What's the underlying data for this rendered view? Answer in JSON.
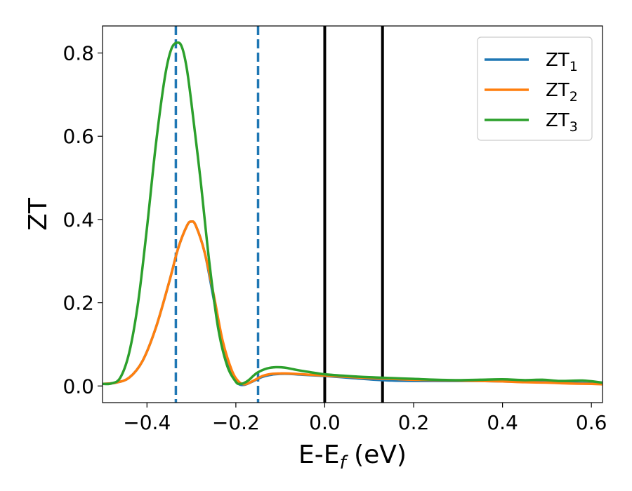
{
  "chart_data": {
    "type": "line",
    "title": "",
    "xlabel_main": "E-E",
    "xlabel_sub": "f",
    "xlabel_unit": " (eV)",
    "ylabel": "ZT",
    "xlim": [
      -0.5,
      0.625
    ],
    "ylim": [
      -0.04,
      0.865
    ],
    "xticks": [
      -0.4,
      -0.2,
      0.0,
      0.2,
      0.4,
      0.6
    ],
    "xtick_labels": [
      "−0.4",
      "−0.2",
      "0.0",
      "0.2",
      "0.4",
      "0.6"
    ],
    "yticks": [
      0.0,
      0.2,
      0.4,
      0.6,
      0.8
    ],
    "ytick_labels": [
      "0.0",
      "0.2",
      "0.4",
      "0.6",
      "0.8"
    ],
    "grid": false,
    "legend_position": "top-right",
    "vlines": [
      {
        "x": -0.335,
        "style": "dashed",
        "color": "#1f77b4"
      },
      {
        "x": -0.15,
        "style": "dashed",
        "color": "#1f77b4"
      },
      {
        "x": 0.0,
        "style": "solid",
        "color": "#000000"
      },
      {
        "x": 0.13,
        "style": "solid",
        "color": "#000000"
      }
    ],
    "series": [
      {
        "name": "ZT",
        "subscript": "1",
        "color": "#1f77b4",
        "x": [
          -0.5,
          -0.47,
          -0.44,
          -0.41,
          -0.38,
          -0.35,
          -0.33,
          -0.31,
          -0.3,
          -0.29,
          -0.27,
          -0.25,
          -0.23,
          -0.21,
          -0.195,
          -0.18,
          -0.16,
          -0.14,
          -0.12,
          -0.1,
          -0.08,
          -0.05,
          0.0,
          0.05,
          0.1,
          0.15,
          0.2,
          0.25,
          0.3,
          0.35,
          0.4,
          0.45,
          0.5,
          0.55,
          0.6,
          0.625
        ],
        "y": [
          0.005,
          0.008,
          0.02,
          0.06,
          0.14,
          0.25,
          0.33,
          0.385,
          0.395,
          0.385,
          0.32,
          0.21,
          0.1,
          0.03,
          0.006,
          0.003,
          0.012,
          0.022,
          0.027,
          0.029,
          0.029,
          0.027,
          0.024,
          0.02,
          0.016,
          0.013,
          0.012,
          0.012,
          0.012,
          0.012,
          0.011,
          0.01,
          0.009,
          0.008,
          0.006,
          0.005
        ]
      },
      {
        "name": "ZT",
        "subscript": "2",
        "color": "#ff7f0e",
        "x": [
          -0.5,
          -0.47,
          -0.44,
          -0.41,
          -0.38,
          -0.35,
          -0.33,
          -0.31,
          -0.3,
          -0.29,
          -0.27,
          -0.25,
          -0.23,
          -0.21,
          -0.195,
          -0.18,
          -0.16,
          -0.14,
          -0.12,
          -0.1,
          -0.08,
          -0.05,
          0.0,
          0.05,
          0.1,
          0.15,
          0.2,
          0.25,
          0.3,
          0.35,
          0.4,
          0.45,
          0.5,
          0.55,
          0.6,
          0.625
        ],
        "y": [
          0.005,
          0.008,
          0.02,
          0.06,
          0.14,
          0.25,
          0.33,
          0.385,
          0.395,
          0.385,
          0.32,
          0.22,
          0.11,
          0.04,
          0.012,
          0.004,
          0.013,
          0.024,
          0.029,
          0.03,
          0.03,
          0.028,
          0.025,
          0.022,
          0.019,
          0.017,
          0.015,
          0.014,
          0.013,
          0.012,
          0.011,
          0.009,
          0.008,
          0.006,
          0.005,
          0.004
        ]
      },
      {
        "name": "ZT",
        "subscript": "3",
        "color": "#2ca02c",
        "x": [
          -0.5,
          -0.48,
          -0.46,
          -0.44,
          -0.42,
          -0.4,
          -0.38,
          -0.36,
          -0.345,
          -0.33,
          -0.32,
          -0.31,
          -0.3,
          -0.28,
          -0.26,
          -0.24,
          -0.22,
          -0.2,
          -0.19,
          -0.18,
          -0.17,
          -0.16,
          -0.15,
          -0.13,
          -0.11,
          -0.09,
          -0.07,
          -0.05,
          -0.02,
          0.0,
          0.05,
          0.1,
          0.15,
          0.2,
          0.25,
          0.3,
          0.35,
          0.4,
          0.45,
          0.49,
          0.53,
          0.58,
          0.625
        ],
        "y": [
          0.005,
          0.006,
          0.02,
          0.08,
          0.2,
          0.38,
          0.58,
          0.74,
          0.81,
          0.825,
          0.81,
          0.76,
          0.68,
          0.5,
          0.3,
          0.14,
          0.05,
          0.01,
          0.005,
          0.008,
          0.015,
          0.025,
          0.033,
          0.042,
          0.045,
          0.044,
          0.04,
          0.036,
          0.031,
          0.028,
          0.024,
          0.021,
          0.019,
          0.017,
          0.015,
          0.014,
          0.015,
          0.016,
          0.014,
          0.015,
          0.012,
          0.013,
          0.008
        ]
      }
    ]
  }
}
